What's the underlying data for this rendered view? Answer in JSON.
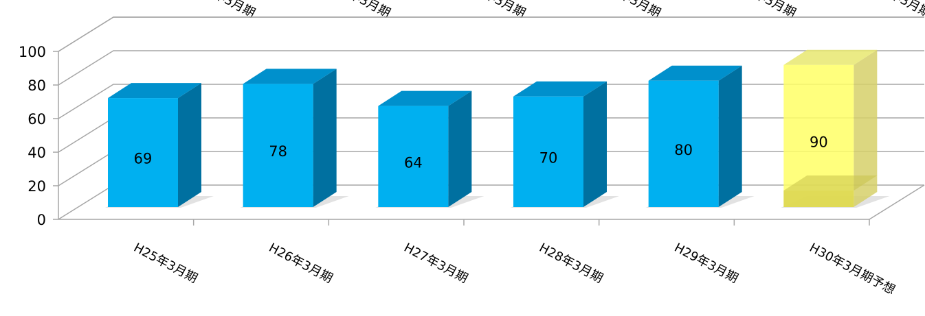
{
  "chart_data": {
    "type": "bar",
    "style": "3d-clustered-column",
    "categories": [
      "H25年3月期",
      "H26年3月期",
      "H27年3月期",
      "H28年3月期",
      "H29年3月期",
      "H30年3月期予想"
    ],
    "values": [
      69,
      78,
      64,
      70,
      80,
      90
    ],
    "data_labels": [
      "69",
      "78",
      "64",
      "70",
      "80",
      "90"
    ],
    "ylim": [
      0,
      100
    ],
    "y_ticks": [
      0,
      20,
      40,
      60,
      80,
      100
    ],
    "y_tick_labels": [
      "0",
      "20",
      "40",
      "60",
      "80",
      "100"
    ],
    "grid": true,
    "colors": {
      "actual": "#00B0F0",
      "actual_side": "#0070A0",
      "actual_top": "#0090CC",
      "forecast": "#FFFF66",
      "forecast_side": "#D6D06A",
      "forecast_top": "#E8E870",
      "grid": "#A6A6A6"
    },
    "highlighted_category_index": 5
  }
}
